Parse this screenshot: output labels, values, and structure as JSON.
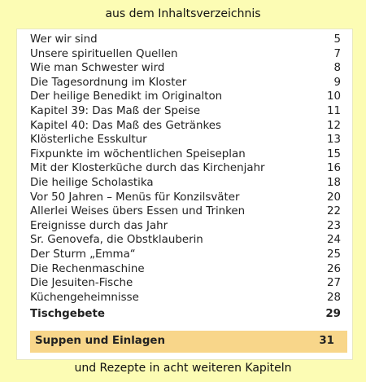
{
  "header": {
    "title": "aus dem Inhaltsverzeichnis"
  },
  "toc": {
    "entries": [
      {
        "title": "Wer wir sind",
        "page": 5
      },
      {
        "title": "Unsere spirituellen Quellen",
        "page": 7
      },
      {
        "title": "Wie man Schwester wird",
        "page": 8
      },
      {
        "title": "Die Tagesordnung im Kloster",
        "page": 9
      },
      {
        "title": "Der heilige Benedikt im Originalton",
        "page": 10
      },
      {
        "title": "Kapitel 39: Das Maß der Speise",
        "page": 11
      },
      {
        "title": "Kapitel 40: Das Maß des Getränkes",
        "page": 12
      },
      {
        "title": "Klösterliche Esskultur",
        "page": 13
      },
      {
        "title": "Fixpunkte im wöchentlichen Speiseplan",
        "page": 15
      },
      {
        "title": "Mit der Klosterküche durch das Kirchenjahr",
        "page": 16
      },
      {
        "title": "Die heilige Scholastika",
        "page": 18
      },
      {
        "title": "Vor 50 Jahren – Menüs für Konzilsväter",
        "page": 20
      },
      {
        "title": "Allerlei Weises übers Essen und Trinken",
        "page": 22
      },
      {
        "title": "Ereignisse durch das Jahr",
        "page": 23
      },
      {
        "title": "Sr. Genovefa, die Obstklauberin",
        "page": 24
      },
      {
        "title": "Der Sturm „Emma“",
        "page": 25
      },
      {
        "title": "Die Rechenmaschine",
        "page": 26
      },
      {
        "title": "Die Jesuiten-Fische",
        "page": 27
      },
      {
        "title": "Küchengeheimnisse",
        "page": 28
      }
    ],
    "prayers": {
      "title": "Tischgebete",
      "page": 29
    },
    "section": {
      "title": "Suppen und Einlagen",
      "page": 31
    }
  },
  "footer": {
    "text": "und Rezepte in acht weiteren Kapiteln"
  }
}
